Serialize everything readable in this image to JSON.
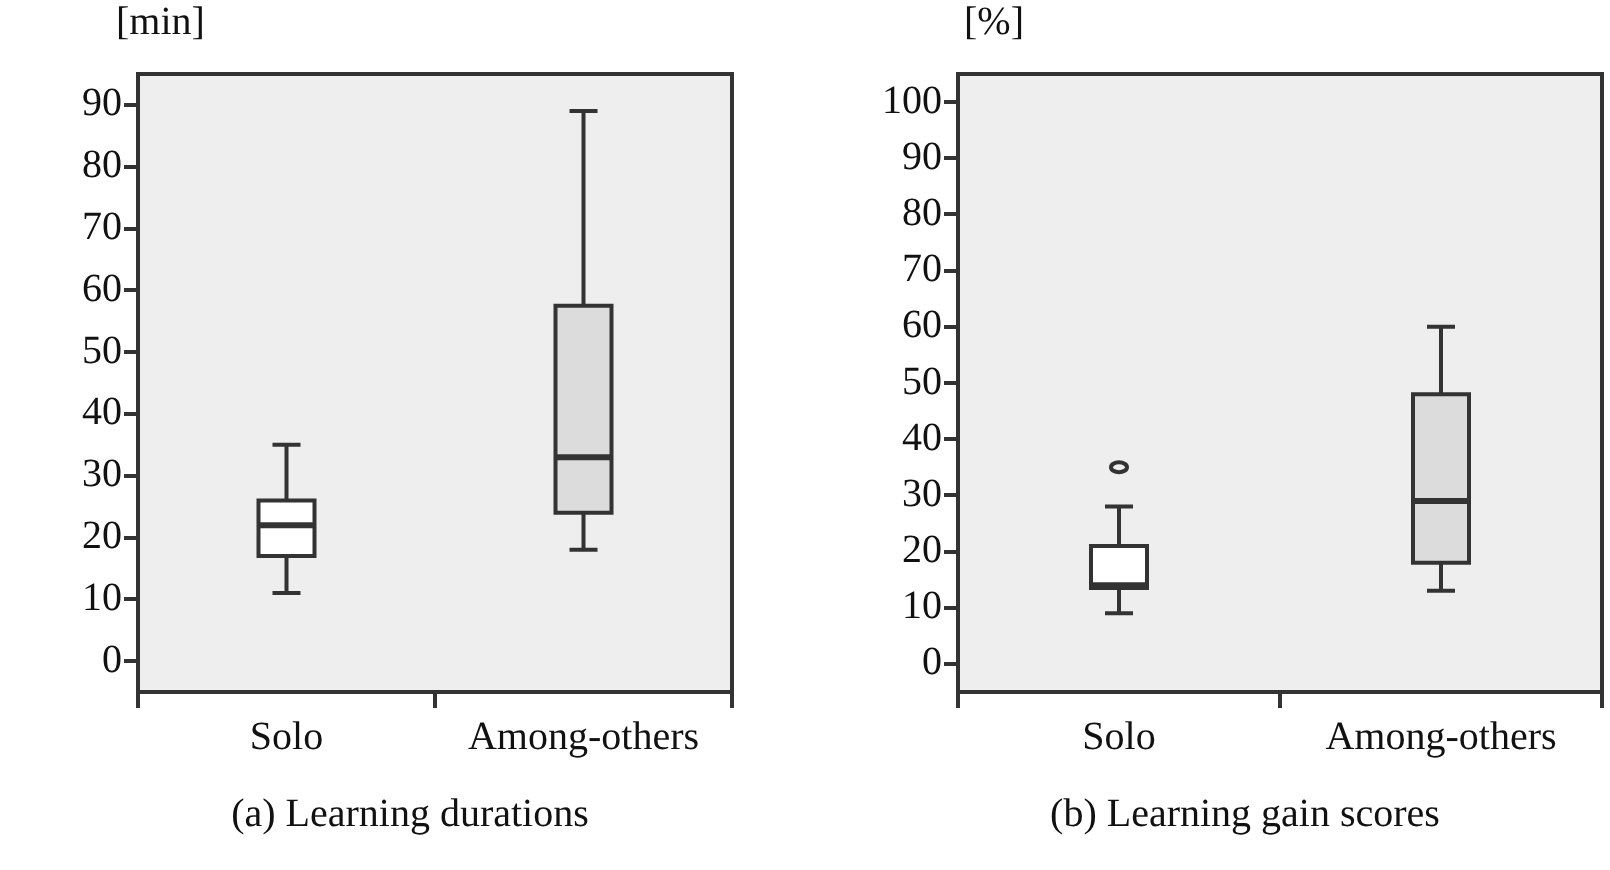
{
  "chart_data": [
    {
      "type": "box",
      "title": "(a) Learning durations",
      "ylabel": "[min]",
      "categories": [
        "Solo",
        "Among-others"
      ],
      "colors": [
        "#ffffff",
        "#dcdcdc"
      ],
      "boxes": [
        {
          "low": 11,
          "q1": 17,
          "median": 22,
          "q3": 26,
          "high": 35
        },
        {
          "low": 18,
          "q1": 24,
          "median": 33,
          "q3": 57.5,
          "high": 89
        }
      ],
      "ylim": [
        -5,
        95
      ],
      "yticks": [
        0,
        10,
        20,
        30,
        40,
        50,
        60,
        70,
        80,
        90
      ]
    },
    {
      "type": "box",
      "title": "(b) Learning gain scores",
      "ylabel": "[%]",
      "categories": [
        "Solo",
        "Among-others"
      ],
      "colors": [
        "#ffffff",
        "#dcdcdc"
      ],
      "boxes": [
        {
          "low": 9,
          "q1": 13.5,
          "median": 14,
          "q3": 21,
          "high": 28,
          "outliers": [
            35
          ]
        },
        {
          "low": 13,
          "q1": 18,
          "median": 29,
          "q3": 48,
          "high": 60
        }
      ],
      "ylim": [
        -5,
        105
      ],
      "yticks": [
        0,
        10,
        20,
        30,
        40,
        50,
        60,
        70,
        80,
        90,
        100
      ]
    }
  ]
}
